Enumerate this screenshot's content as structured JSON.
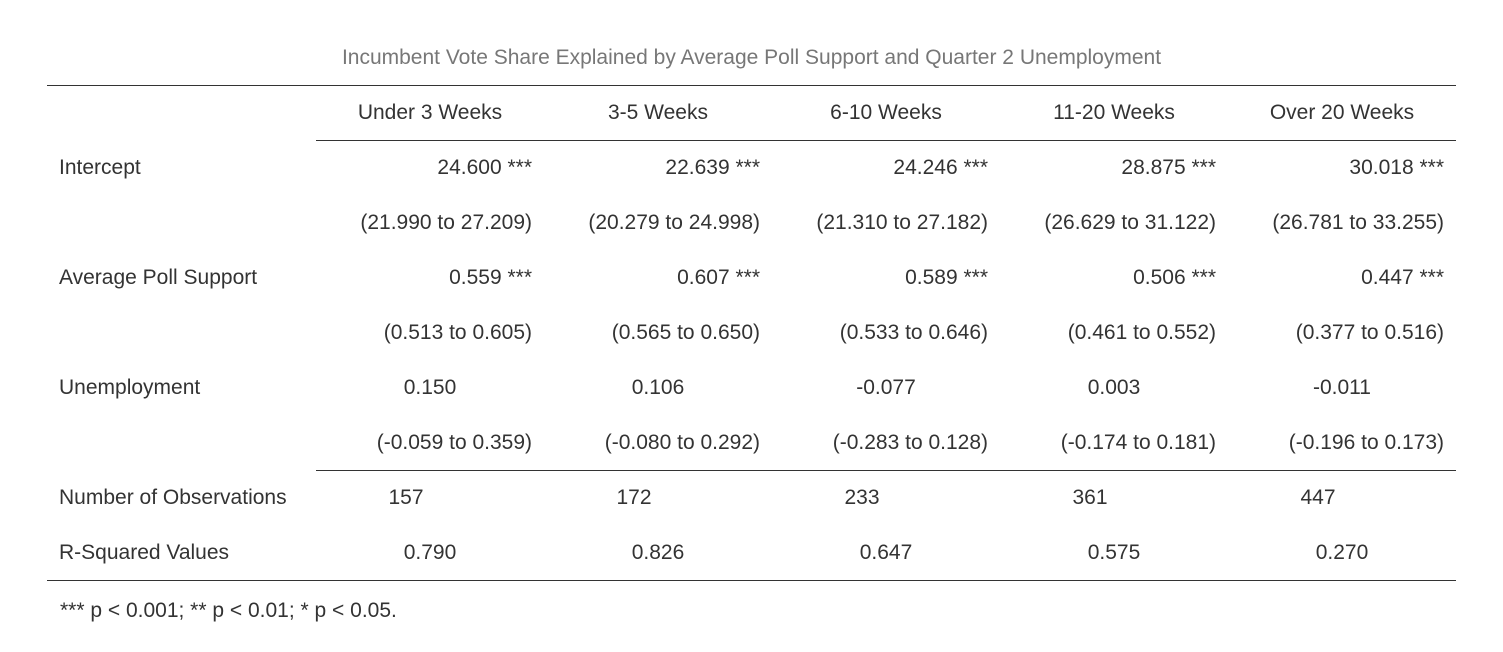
{
  "title": "Incumbent Vote Share Explained by Average Poll Support and Quarter 2 Unemployment",
  "columns": [
    "Under 3 Weeks",
    "3-5 Weeks",
    "6-10 Weeks",
    "11-20 Weeks",
    "Over 20 Weeks"
  ],
  "rows": {
    "intercept": {
      "label": "Intercept",
      "estimates": [
        "24.600 ***",
        "22.639 ***",
        "24.246 ***",
        "28.875 ***",
        "30.018 ***"
      ],
      "ci": [
        "(21.990 to 27.209)",
        "(20.279 to 24.998)",
        "(21.310 to 27.182)",
        "(26.629 to 31.122)",
        "(26.781 to 33.255)"
      ]
    },
    "poll": {
      "label": "Average Poll Support",
      "estimates": [
        "0.559 ***",
        "0.607 ***",
        "0.589 ***",
        "0.506 ***",
        "0.447 ***"
      ],
      "ci": [
        "(0.513 to 0.605)",
        "(0.565 to 0.650)",
        "(0.533 to 0.646)",
        "(0.461 to 0.552)",
        "(0.377 to 0.516)"
      ]
    },
    "unemployment": {
      "label": "Unemployment",
      "estimates": [
        "0.150",
        "0.106",
        "-0.077",
        "0.003",
        "-0.011"
      ],
      "ci": [
        "(-0.059 to 0.359)",
        "(-0.080 to 0.292)",
        "(-0.283 to 0.128)",
        "(-0.174 to 0.181)",
        "(-0.196 to 0.173)"
      ]
    }
  },
  "stats": {
    "n_obs": {
      "label": "Number of Observations",
      "values": [
        "157",
        "172",
        "233",
        "361",
        "447"
      ]
    },
    "r2": {
      "label": "R-Squared Values",
      "values": [
        "0.790",
        "0.826",
        "0.647",
        "0.575",
        "0.270"
      ]
    }
  },
  "note": "*** p < 0.001; ** p < 0.01; * p < 0.05."
}
